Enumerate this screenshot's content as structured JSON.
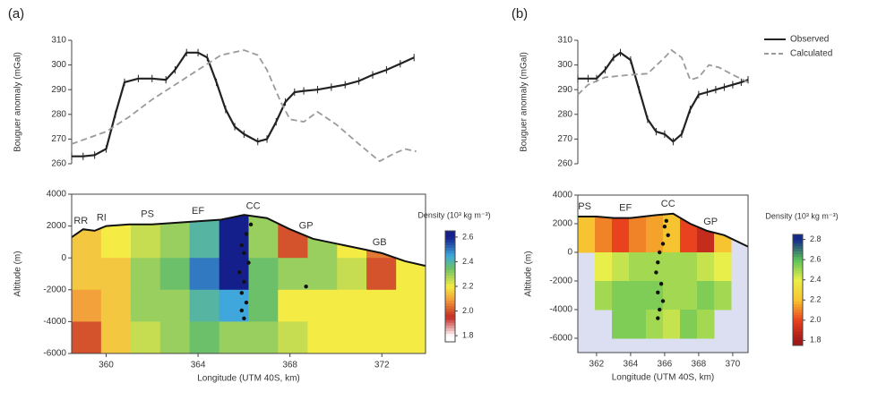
{
  "chart_data": [
    {
      "type": "line",
      "title": "(a)",
      "ylabel": "Bouguer anomaly (mGal)",
      "xlim": [
        358.5,
        373.9
      ],
      "ylim": [
        260,
        310
      ],
      "yticks": [
        260,
        270,
        280,
        290,
        300,
        310
      ],
      "series": [
        {
          "color": "#222222",
          "dash": false,
          "x": [
            358.5,
            359.0,
            359.5,
            360.0,
            360.4,
            360.8,
            361.4,
            362.0,
            362.6,
            363.0,
            363.5,
            364.0,
            364.4,
            364.8,
            365.2,
            365.6,
            366.0,
            366.6,
            367.0,
            367.4,
            367.8,
            368.2,
            368.6,
            369.2,
            369.8,
            370.4,
            371.0,
            371.6,
            372.2,
            372.8,
            373.4
          ],
          "values": [
            263,
            263,
            263.5,
            266,
            280,
            293,
            294.5,
            294.5,
            294,
            298,
            305,
            305,
            303,
            293,
            282,
            275,
            272,
            269,
            270,
            277,
            285,
            289,
            289.5,
            290,
            291,
            292,
            293.5,
            296,
            298,
            300.5,
            303
          ],
          "errors": [
            1.5,
            1.5,
            1.5,
            1.5,
            1.5,
            1.5,
            1.5,
            1.5,
            1.5,
            1.5,
            1.5,
            1.5,
            1.5,
            1.5,
            1.5,
            1.5,
            1.5,
            1.5,
            1.5,
            1.5,
            1.5,
            1.5,
            1.5,
            1.5,
            1.5,
            1.5,
            1.5,
            1.5,
            1.5,
            1.5,
            1.5
          ]
        },
        {
          "color": "#9a9a9a",
          "dash": true,
          "x": [
            358.5,
            360.0,
            361.0,
            362.0,
            363.0,
            364.0,
            365.0,
            366.0,
            366.6,
            367.0,
            367.6,
            368.0,
            368.6,
            369.2,
            370.0,
            371.0,
            371.9,
            372.5,
            373.0,
            373.5
          ],
          "values": [
            268,
            273,
            279,
            286,
            292,
            298,
            304,
            306,
            304,
            298,
            285,
            278,
            277,
            281,
            276,
            268,
            261,
            264,
            266,
            265
          ]
        }
      ]
    },
    {
      "type": "heatmap",
      "xlabel": "Longitude (UTM 40S, km)",
      "ylabel": "Altitude (m)",
      "xlim": [
        358.5,
        373.9
      ],
      "xticks": [
        360,
        364,
        368,
        372
      ],
      "ylim": [
        -6000,
        4000
      ],
      "yticks": [
        -6000,
        -4000,
        -2000,
        0,
        2000,
        4000
      ],
      "x_edges": [
        358.5,
        359.78,
        361.07,
        362.35,
        363.63,
        364.92,
        366.2,
        367.48,
        368.77,
        370.05,
        371.33,
        372.62,
        373.9
      ],
      "y_edges": [
        2800,
        0,
        -2000,
        -4000,
        -6000
      ],
      "z": [
        [
          2.15,
          2.2,
          2.25,
          2.3,
          2.4,
          2.6,
          2.3,
          2.0,
          2.3,
          2.2,
          2.05,
          2.2
        ],
        [
          2.15,
          2.15,
          2.3,
          2.35,
          2.5,
          2.6,
          2.35,
          2.3,
          2.3,
          2.25,
          2.0,
          2.2
        ],
        [
          2.1,
          2.15,
          2.3,
          2.3,
          2.4,
          2.45,
          2.35,
          2.2,
          2.2,
          2.2,
          2.2,
          2.2
        ],
        [
          2.0,
          2.15,
          2.25,
          2.3,
          2.35,
          2.3,
          2.3,
          2.25,
          2.2,
          2.2,
          2.2,
          2.2
        ]
      ],
      "colorscale": [
        [
          1.8,
          "#ffffff"
        ],
        [
          1.95,
          "#c42a25"
        ],
        [
          2.1,
          "#f3a23b"
        ],
        [
          2.2,
          "#f4ec45"
        ],
        [
          2.35,
          "#6cc06a"
        ],
        [
          2.45,
          "#3fa7dc"
        ],
        [
          2.6,
          "#151f8c"
        ]
      ],
      "colorbar": {
        "label": "Density (10³ kg m⁻³)",
        "lim": [
          1.75,
          2.65
        ],
        "ticks": [
          {
            "value": 1.8,
            "label": "1.8"
          },
          {
            "value": 2,
            "label": "2.0"
          },
          2.2,
          2.4,
          2.6
        ]
      },
      "topography": {
        "x": [
          358.5,
          359.0,
          359.5,
          360.0,
          361.0,
          362.0,
          363.0,
          364.0,
          365.0,
          366.0,
          367.0,
          368.0,
          369.0,
          370.0,
          371.0,
          372.0,
          373.0,
          373.9
        ],
        "y": [
          1300,
          1800,
          1700,
          2000,
          2100,
          2100,
          2200,
          2300,
          2400,
          2700,
          2500,
          1800,
          1200,
          900,
          600,
          300,
          -200,
          -500
        ]
      },
      "stations": [
        {
          "label": "RR",
          "x": 358.9
        },
        {
          "label": "RI",
          "x": 359.8
        },
        {
          "label": "PS",
          "x": 361.8
        },
        {
          "label": "EF",
          "x": 364.0
        },
        {
          "label": "CC",
          "x": 366.4
        },
        {
          "label": "GP",
          "x": 368.7
        },
        {
          "label": "GB",
          "x": 371.9
        }
      ],
      "events": {
        "x": [
          366.3,
          366.1,
          365.9,
          366.0,
          366.2,
          365.8,
          366.0,
          365.9,
          366.1,
          365.9,
          366.0,
          368.7
        ],
        "y": [
          2100,
          1500,
          800,
          300,
          -300,
          -900,
          -1500,
          -2200,
          -2800,
          -3300,
          -3800,
          -1800
        ]
      }
    },
    {
      "type": "line",
      "title": "(b)",
      "ylabel": "Bouguer anomaly (mGal)",
      "legend": "top-right",
      "xlim": [
        360.9,
        370.9
      ],
      "ylim": [
        260,
        310
      ],
      "yticks": [
        260,
        270,
        280,
        290,
        300,
        310
      ],
      "series": [
        {
          "name": "Observed",
          "color": "#222222",
          "dash": false,
          "x": [
            360.9,
            361.5,
            362.0,
            362.5,
            363.0,
            363.4,
            364.0,
            364.5,
            365.0,
            365.5,
            366.0,
            366.5,
            367.0,
            367.5,
            368.0,
            368.5,
            369.0,
            369.5,
            370.0,
            370.5,
            370.9
          ],
          "values": [
            294.5,
            294.5,
            294.5,
            298,
            303,
            305,
            302,
            290,
            278,
            273,
            272,
            269,
            272,
            282,
            288,
            289,
            290,
            291,
            292,
            293,
            294
          ],
          "errors": [
            1.5,
            1.5,
            1.5,
            1.5,
            1.5,
            1.5,
            1.5,
            1.5,
            1.5,
            1.5,
            1.5,
            1.5,
            1.5,
            1.5,
            1.5,
            1.5,
            1.5,
            1.5,
            1.5,
            1.5,
            1.5
          ]
        },
        {
          "name": "Calculated",
          "color": "#9a9a9a",
          "dash": true,
          "x": [
            360.9,
            361.5,
            362.5,
            364.0,
            365.0,
            366.0,
            366.4,
            367.0,
            367.5,
            368.0,
            368.6,
            369.2,
            370.0,
            370.9
          ],
          "values": [
            288,
            292,
            295,
            296,
            296.5,
            303,
            306,
            303,
            294,
            295,
            300,
            299,
            296,
            293
          ]
        }
      ]
    },
    {
      "type": "heatmap",
      "xlabel": "Longitude (UTM 40S, km)",
      "ylabel": "Altitude (m)",
      "xlim": [
        360.9,
        370.9
      ],
      "xticks": [
        362,
        364,
        366,
        368,
        370
      ],
      "ylim": [
        -7000,
        4000
      ],
      "yticks": [
        -6000,
        -4000,
        -2000,
        0,
        2000,
        4000
      ],
      "x_edges": [
        360.9,
        361.9,
        362.9,
        363.9,
        364.9,
        365.9,
        366.9,
        367.9,
        368.9,
        369.9,
        370.9
      ],
      "y_edges": [
        2800,
        0,
        -2000,
        -4000,
        -6000
      ],
      "z": [
        [
          2.2,
          2.1,
          2.0,
          2.1,
          2.15,
          2.2,
          2.0,
          1.9,
          2.2,
          null
        ],
        [
          null,
          2.4,
          2.45,
          2.5,
          2.5,
          2.5,
          2.5,
          2.45,
          2.4,
          null
        ],
        [
          null,
          2.5,
          2.55,
          2.55,
          2.55,
          2.5,
          2.5,
          2.55,
          2.5,
          null
        ],
        [
          null,
          null,
          2.55,
          2.55,
          2.5,
          2.45,
          2.55,
          2.5,
          null,
          null
        ]
      ],
      "colorscale": [
        [
          1.8,
          "#a11818"
        ],
        [
          2.0,
          "#e8421f"
        ],
        [
          2.2,
          "#f7c431"
        ],
        [
          2.4,
          "#e9ef4a"
        ],
        [
          2.6,
          "#5bc15a"
        ],
        [
          2.8,
          "#142a8a"
        ]
      ],
      "colorbar": {
        "label": "Density (10³ kg m⁻³)",
        "lim": [
          1.75,
          2.85
        ],
        "ticks": [
          {
            "value": 1.8,
            "label": "1.8"
          },
          {
            "value": 2,
            "label": "2.0"
          },
          2.2,
          2.4,
          2.6,
          2.8
        ]
      },
      "topography": {
        "x": [
          360.9,
          362.0,
          363.0,
          364.0,
          365.5,
          366.5,
          367.5,
          368.5,
          369.5,
          370.9
        ],
        "y": [
          2500,
          2500,
          2400,
          2400,
          2600,
          2700,
          2000,
          1500,
          1200,
          400
        ]
      },
      "stations": [
        {
          "label": "PS",
          "x": 361.3
        },
        {
          "label": "EF",
          "x": 363.7
        },
        {
          "label": "CC",
          "x": 366.2
        },
        {
          "label": "GP",
          "x": 368.7
        }
      ],
      "events": {
        "x": [
          366.0,
          366.2,
          365.9,
          365.7,
          365.6,
          365.5,
          365.8,
          365.6,
          365.9,
          365.7,
          365.6,
          366.1
        ],
        "y": [
          1800,
          1200,
          600,
          0,
          -700,
          -1400,
          -2200,
          -2800,
          -3400,
          -4000,
          -4600,
          2200
        ]
      }
    }
  ]
}
